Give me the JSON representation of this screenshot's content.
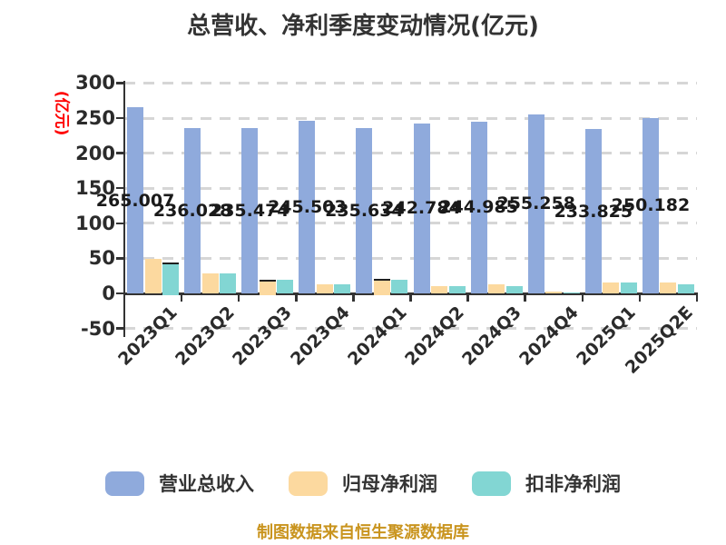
{
  "title": "总营收、净利季度变动情况(亿元)",
  "y_axis": {
    "unit_label": "(亿元)",
    "unit_label_color": "#ff0000",
    "ticks": [
      300,
      250,
      200,
      150,
      100,
      50,
      0,
      -50
    ]
  },
  "legend": {
    "items": [
      {
        "label": "营业总收入",
        "color": "#8FAADC"
      },
      {
        "label": "归母净利润",
        "color": "#FCD99F"
      },
      {
        "label": "扣非净利润",
        "color": "#82D6D3"
      }
    ]
  },
  "caption": "制图数据来自恒生聚源数据库",
  "chart_data": {
    "type": "bar",
    "categories": [
      "2023Q1",
      "2023Q2",
      "2023Q3",
      "2023Q4",
      "2024Q1",
      "2024Q2",
      "2024Q3",
      "2024Q4",
      "2025Q1",
      "2025Q2E"
    ],
    "series": [
      {
        "name": "营业总收入",
        "color": "#8FAADC",
        "values": [
          265.007,
          236.028,
          235.474,
          245.503,
          235.634,
          242.784,
          244.985,
          255.258,
          233.825,
          250.182
        ],
        "value_labels_shown": true
      },
      {
        "name": "归母净利润",
        "color": "#FCD99F",
        "values": [
          49,
          28,
          20,
          13,
          21,
          11,
          13,
          2,
          16,
          15
        ],
        "value_labels_shown": false,
        "values_estimated_from_pixels": true
      },
      {
        "name": "扣非净利润",
        "color": "#82D6D3",
        "values": [
          44,
          28,
          19,
          13,
          20,
          10,
          11,
          1,
          16,
          13
        ],
        "value_labels_shown": false,
        "values_estimated_from_pixels": true
      }
    ],
    "value_labels": [
      "265.007",
      "236.028",
      "235.474",
      "245.503",
      "235.634",
      "242.784",
      "244.985",
      "255.258",
      "233.825",
      "250.182"
    ],
    "dark_top_edge_bars": [
      {
        "series": 2,
        "index": 0
      },
      {
        "series": 1,
        "index": 2
      },
      {
        "series": 1,
        "index": 4
      }
    ],
    "title": "总营收、净利季度变动情况(亿元)",
    "ylabel": "(亿元)",
    "ylim": [
      -50,
      300
    ],
    "y_tick_step": 50,
    "grid": "horizontal-dashed",
    "legend_position": "bottom"
  }
}
